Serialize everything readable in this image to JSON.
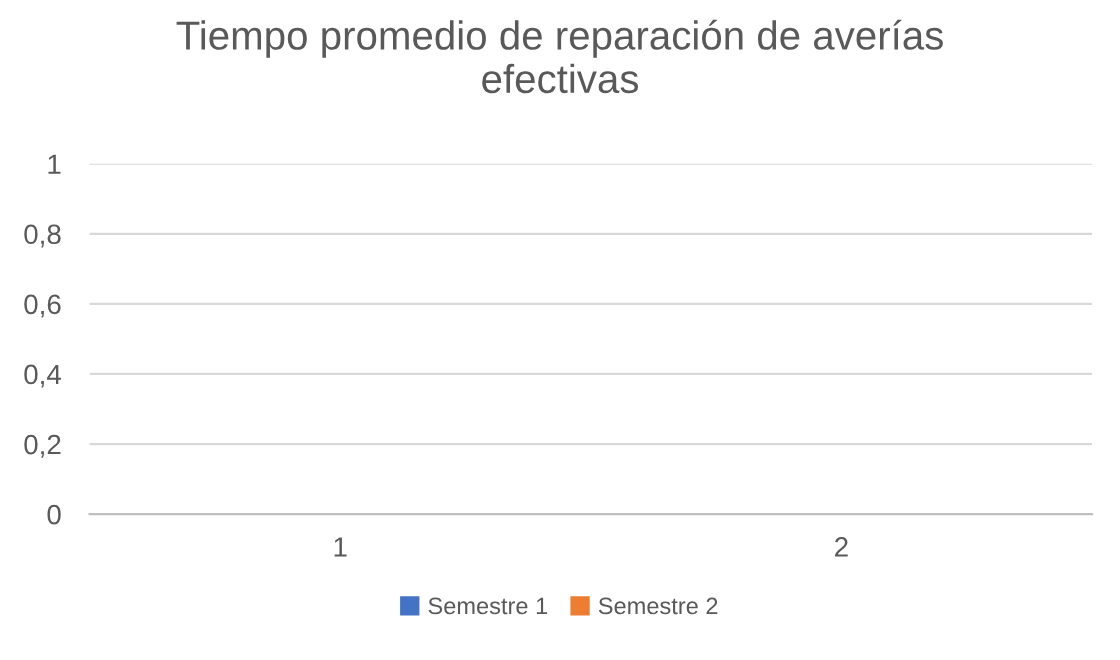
{
  "chart_data": {
    "type": "bar",
    "title": "Tiempo promedio de reparación de averías\nefectivas",
    "categories": [
      "1",
      "2"
    ],
    "series": [
      {
        "name": "Semestre 1",
        "color": "#4472c4",
        "values": [
          0,
          0
        ]
      },
      {
        "name": "Semestre 2",
        "color": "#ed7d31",
        "values": [
          0,
          0
        ]
      }
    ],
    "ylim": [
      0,
      1
    ],
    "yticks": [
      0,
      {
        "value": 0.2,
        "label": "0,2"
      },
      {
        "value": 0.4,
        "label": "0,4"
      },
      {
        "value": 0.6,
        "label": "0,6"
      },
      {
        "value": 0.8,
        "label": "0,8"
      },
      1
    ],
    "grid": "y",
    "legend": "bottom"
  }
}
